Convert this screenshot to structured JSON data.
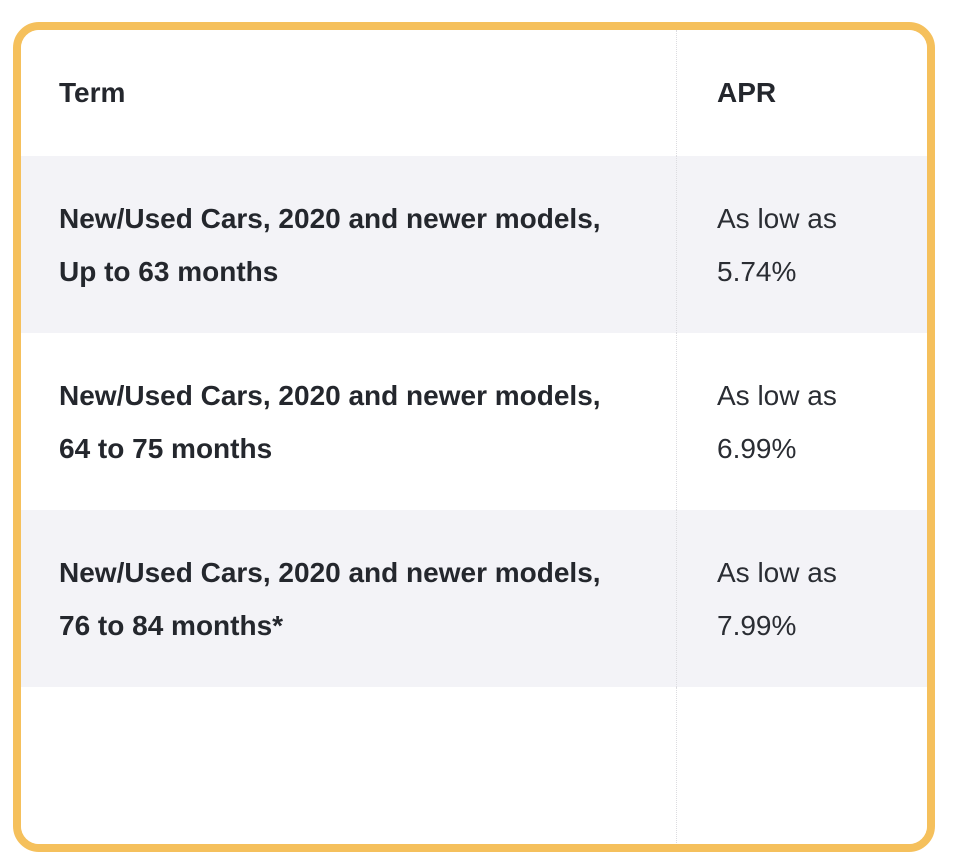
{
  "rates_table": {
    "headers": [
      "Term",
      "APR"
    ],
    "rows": [
      {
        "term": "New/Used Cars, 2020 and newer models, Up to 63 months",
        "apr": "As low as 5.74%"
      },
      {
        "term": "New/Used Cars, 2020 and newer models, 64 to 75 months",
        "apr": "As low as 6.99%"
      },
      {
        "term": "New/Used Cars, 2020 and newer models, 76 to 84 months*",
        "apr": "As low as 7.99%"
      }
    ]
  },
  "colors": {
    "card_border": "#F5C05C",
    "row_alt_bg": "#F3F3F7",
    "heading_text": "#24272D",
    "body_text": "#2A2D33",
    "divider": "#DCDCE0"
  }
}
